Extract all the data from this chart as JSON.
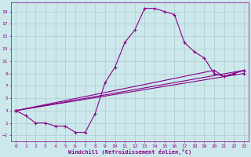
{
  "background_color": "#cce8ec",
  "grid_color": "#aacccc",
  "line_color": "#880088",
  "xlabel": "Windchill (Refroidissement éolien,°C)",
  "xlabel_color": "#880088",
  "xlim": [
    -0.5,
    23.5
  ],
  "ylim": [
    -2,
    20.5
  ],
  "xticks": [
    0,
    1,
    2,
    3,
    4,
    5,
    6,
    7,
    8,
    9,
    10,
    11,
    12,
    13,
    14,
    15,
    16,
    17,
    18,
    19,
    20,
    21,
    22,
    23
  ],
  "yticks": [
    -1,
    1,
    3,
    5,
    7,
    9,
    11,
    13,
    15,
    17,
    19
  ],
  "tick_color": "#880088",
  "series1": [
    [
      0,
      3
    ],
    [
      1,
      2.2
    ],
    [
      2,
      1
    ],
    [
      3,
      1
    ],
    [
      4,
      0.5
    ],
    [
      5,
      0.5
    ],
    [
      6,
      -0.5
    ],
    [
      7,
      -0.5
    ],
    [
      8,
      2.5
    ],
    [
      9,
      7.5
    ],
    [
      10,
      10
    ],
    [
      11,
      14
    ],
    [
      12,
      16
    ],
    [
      13,
      19.5
    ],
    [
      14,
      19.5
    ],
    [
      15,
      19
    ],
    [
      16,
      18.5
    ],
    [
      17,
      14
    ],
    [
      18,
      12.5
    ],
    [
      19,
      11.5
    ],
    [
      20,
      9
    ],
    [
      21,
      8.5
    ],
    [
      22,
      9
    ],
    [
      23,
      9.5
    ]
  ],
  "series2": [
    [
      0,
      3
    ],
    [
      23,
      9
    ]
  ],
  "series3": [
    [
      0,
      3
    ],
    [
      20,
      9.5
    ],
    [
      21,
      8.5
    ],
    [
      22,
      9
    ],
    [
      23,
      9.5
    ]
  ],
  "series4": [
    [
      0,
      3
    ],
    [
      23,
      9.5
    ]
  ]
}
